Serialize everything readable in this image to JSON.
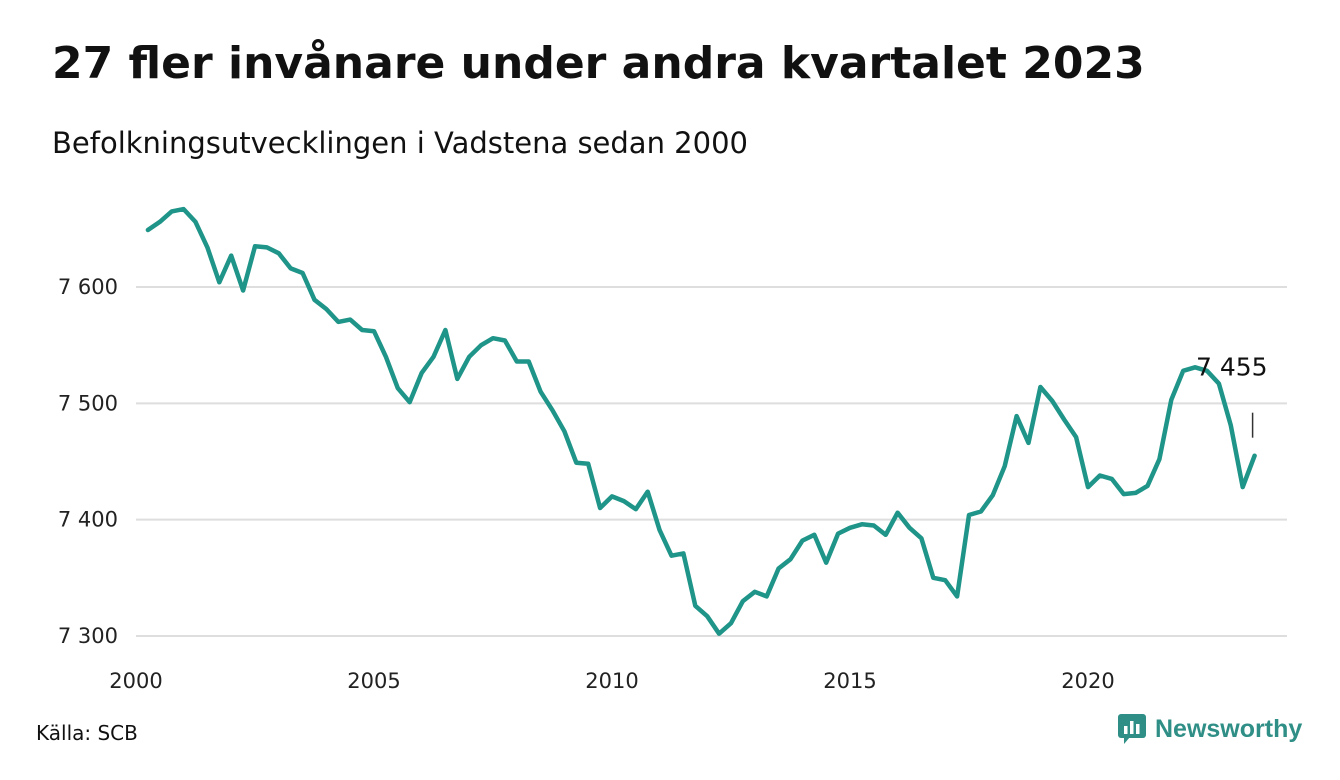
{
  "chart_data": {
    "type": "line",
    "title": "27 fler invånare under andra kvartalet 2023",
    "subtitle": "Befolkningsutvecklingen i Vadstena sedan 2000",
    "ylim": [
      7295,
      7675
    ],
    "xlim": [
      2000,
      2023.75
    ],
    "yticks": [
      {
        "value": 7300,
        "label": "7 300"
      },
      {
        "value": 7400,
        "label": "7 400"
      },
      {
        "value": 7500,
        "label": "7 500"
      },
      {
        "value": 7600,
        "label": "7 600"
      }
    ],
    "xticks": [
      {
        "value": 2000,
        "label": "2000"
      },
      {
        "value": 2005,
        "label": "2005"
      },
      {
        "value": 2010,
        "label": "2010"
      },
      {
        "value": 2015,
        "label": "2015"
      },
      {
        "value": 2020,
        "label": "2020"
      }
    ],
    "grid": true,
    "line_color": "#1f9488",
    "series": [
      {
        "name": "",
        "x": [
          2000.25,
          2000.5,
          2000.75,
          2001,
          2001.25,
          2001.5,
          2001.75,
          2002,
          2002.25,
          2002.5,
          2002.75,
          2003,
          2003.25,
          2003.5,
          2003.75,
          2004,
          2004.25,
          2004.5,
          2004.75,
          2005,
          2005.25,
          2005.5,
          2005.75,
          2006,
          2006.25,
          2006.5,
          2006.75,
          2007,
          2007.25,
          2007.5,
          2007.75,
          2008,
          2008.25,
          2008.5,
          2008.75,
          2009,
          2009.25,
          2009.5,
          2009.75,
          2010,
          2010.25,
          2010.5,
          2010.75,
          2011,
          2011.25,
          2011.5,
          2011.75,
          2012,
          2012.25,
          2012.5,
          2012.75,
          2013,
          2013.25,
          2013.5,
          2013.75,
          2014,
          2014.25,
          2014.5,
          2014.75,
          2015,
          2015.25,
          2015.5,
          2015.75,
          2016,
          2016.25,
          2016.5,
          2016.75,
          2017,
          2017.25,
          2017.5,
          2017.75,
          2018,
          2018.25,
          2018.5,
          2018.75,
          2019,
          2019.25,
          2019.5,
          2019.75,
          2020,
          2020.25,
          2020.5,
          2020.75,
          2021,
          2021.25,
          2021.5,
          2021.75,
          2022,
          2022.25,
          2022.5,
          2022.75,
          2023,
          2023.25,
          2023.5
        ],
        "values": [
          7649,
          7656,
          7665,
          7667,
          7656,
          7634,
          7604,
          7627,
          7597,
          7635,
          7634,
          7629,
          7616,
          7612,
          7589,
          7581,
          7570,
          7572,
          7563,
          7562,
          7540,
          7513,
          7501,
          7526,
          7540,
          7563,
          7521,
          7540,
          7550,
          7556,
          7554,
          7536,
          7536,
          7510,
          7494,
          7476,
          7449,
          7448,
          7410,
          7420,
          7416,
          7409,
          7424,
          7391,
          7369,
          7371,
          7326,
          7317,
          7302,
          7311,
          7330,
          7338,
          7334,
          7358,
          7366,
          7382,
          7387,
          7363,
          7388,
          7393,
          7396,
          7395,
          7387,
          7406,
          7393,
          7384,
          7350,
          7348,
          7334,
          7404,
          7407,
          7421,
          7446,
          7489,
          7466,
          7514,
          7502,
          7486,
          7471,
          7428,
          7438,
          7435,
          7422,
          7423,
          7429,
          7452,
          7503,
          7528,
          7531,
          7528,
          7517,
          7481,
          7428,
          7455
        ]
      }
    ],
    "end_label": "7 455"
  },
  "footer": {
    "source": "Källa: SCB",
    "brand": "Newsworthy",
    "brand_color": "#2f8f86",
    "brand_icon": "newsworthy-logo-icon"
  }
}
